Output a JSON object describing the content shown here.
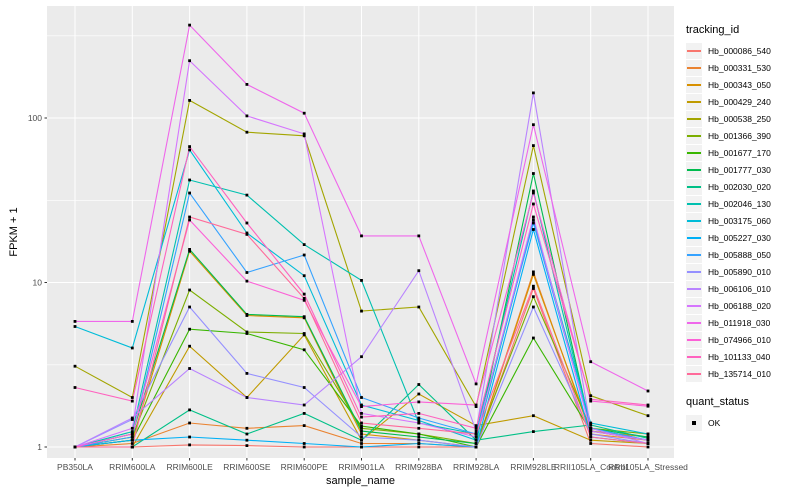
{
  "chart_data": {
    "type": "line",
    "title": "",
    "xlabel": "sample_name",
    "ylabel": "FPKM + 1",
    "yscale": "log10",
    "ylim": [
      0.86,
      480
    ],
    "grid": "on",
    "legend_position": "right",
    "legend_title": "tracking_id",
    "legend2_title": "quant_status",
    "legend2_items": [
      "OK"
    ],
    "yticks": [
      {
        "label": "1",
        "value": 1
      },
      {
        "label": "10",
        "value": 10
      },
      {
        "label": "100",
        "value": 100
      }
    ],
    "minor_gridlines_y": [
      3.162,
      31.62,
      316.2
    ],
    "categories": [
      "PB350LA",
      "RRIM600LA",
      "RRIM600LE",
      "RRIM600SE",
      "RRIM600PE",
      "RRIM901LA",
      "RRIM928BA",
      "RRIM928LA",
      "RRIM928LE",
      "RRII105LA_Control",
      "RRII105LA_Stressed"
    ],
    "colors": {
      "panel": "#EBEBEB",
      "grid": "#FFFFFF",
      "point": "#000000",
      "tick": "#333333",
      "tick_label": "#4D4D4D",
      "legend_key": "#F2F2F2"
    },
    "series": [
      {
        "name": "Hb_000086_540",
        "color": "#F8766D",
        "values": [
          1.0,
          1.0,
          1.03,
          1.02,
          1.0,
          1.0,
          1.0,
          1.0,
          9.2,
          1.05,
          1.0
        ]
      },
      {
        "name": "Hb_000331_530",
        "color": "#EA8331",
        "values": [
          1.0,
          1.05,
          1.4,
          1.3,
          1.35,
          1.05,
          1.05,
          1.0,
          11.6,
          1.2,
          1.1
        ]
      },
      {
        "name": "Hb_000343_050",
        "color": "#D89000",
        "values": [
          1.0,
          1.1,
          15.5,
          6.3,
          6.1,
          1.2,
          1.1,
          1.0,
          11.2,
          1.25,
          1.15
        ]
      },
      {
        "name": "Hb_000429_240",
        "color": "#C09B00",
        "values": [
          1.0,
          1.0,
          4.1,
          2.0,
          4.8,
          1.1,
          2.1,
          1.35,
          1.55,
          1.1,
          1.05
        ]
      },
      {
        "name": "Hb_000538_250",
        "color": "#A3A500",
        "values": [
          3.1,
          2.0,
          128,
          82,
          78,
          6.7,
          7.1,
          1.76,
          68,
          2.05,
          1.55
        ]
      },
      {
        "name": "Hb_001366_390",
        "color": "#7CAE00",
        "values": [
          1.0,
          1.15,
          9.0,
          5.0,
          4.9,
          1.3,
          1.2,
          1.05,
          8.2,
          1.3,
          1.2
        ]
      },
      {
        "name": "Hb_001677_170",
        "color": "#39B600",
        "values": [
          1.0,
          1.1,
          5.2,
          4.9,
          3.9,
          1.34,
          1.2,
          1.0,
          4.6,
          1.25,
          1.1
        ]
      },
      {
        "name": "Hb_001777_030",
        "color": "#00BB4E",
        "values": [
          1.0,
          1.2,
          15.9,
          6.4,
          6.2,
          1.25,
          1.15,
          1.05,
          46,
          1.3,
          1.15
        ]
      },
      {
        "name": "Hb_002030_020",
        "color": "#00C087",
        "values": [
          1.0,
          1.0,
          1.68,
          1.2,
          1.6,
          1.1,
          2.4,
          1.1,
          1.24,
          1.36,
          1.13
        ]
      },
      {
        "name": "Hb_002046_130",
        "color": "#00C0AF",
        "values": [
          1.0,
          1.24,
          42,
          34,
          17,
          10.3,
          1.4,
          1.2,
          36,
          1.3,
          1.1
        ]
      },
      {
        "name": "Hb_003175_060",
        "color": "#00BCD8",
        "values": [
          5.4,
          4.0,
          64,
          20,
          11,
          1.8,
          1.45,
          1.1,
          24,
          1.4,
          1.2
        ]
      },
      {
        "name": "Hb_005227_030",
        "color": "#00B0F6",
        "values": [
          1.0,
          1.1,
          1.15,
          1.1,
          1.05,
          1.0,
          1.05,
          1.0,
          21,
          1.15,
          1.05
        ]
      },
      {
        "name": "Hb_005888_050",
        "color": "#35A2FF",
        "values": [
          1.0,
          1.15,
          35,
          11.5,
          14.7,
          2.0,
          1.5,
          1.2,
          23,
          1.3,
          1.1
        ]
      },
      {
        "name": "Hb_005890_010",
        "color": "#9590FF",
        "values": [
          1.0,
          1.47,
          7.1,
          2.8,
          2.3,
          1.15,
          1.1,
          1.0,
          7.1,
          1.2,
          1.05
        ]
      },
      {
        "name": "Hb_006106_010",
        "color": "#B983FF",
        "values": [
          1.0,
          1.5,
          3.0,
          2.0,
          1.8,
          3.54,
          11.8,
          1.25,
          142,
          1.3,
          1.05
        ]
      },
      {
        "name": "Hb_006188_020",
        "color": "#D575FE",
        "values": [
          1.0,
          1.3,
          223,
          103,
          80,
          1.6,
          1.4,
          1.15,
          25,
          1.25,
          1.1
        ]
      },
      {
        "name": "Hb_011918_030",
        "color": "#EF67EB",
        "values": [
          5.8,
          5.8,
          367,
          160,
          107,
          19.2,
          19.2,
          2.42,
          91,
          3.3,
          2.19
        ]
      },
      {
        "name": "Hb_074966_010",
        "color": "#FC61D7",
        "values": [
          1.0,
          1.2,
          24,
          10.2,
          7.8,
          1.76,
          1.88,
          1.8,
          35,
          1.9,
          1.77
        ]
      },
      {
        "name": "Hb_101133_040",
        "color": "#FF62BF",
        "values": [
          2.3,
          1.9,
          67,
          23,
          8.5,
          1.52,
          1.6,
          1.3,
          30,
          1.95,
          1.8
        ]
      },
      {
        "name": "Hb_135714_010",
        "color": "#FF6A9A",
        "values": [
          1.0,
          1.0,
          25,
          19.6,
          8.0,
          1.4,
          1.3,
          1.2,
          9.5,
          1.15,
          1.05
        ]
      }
    ]
  }
}
